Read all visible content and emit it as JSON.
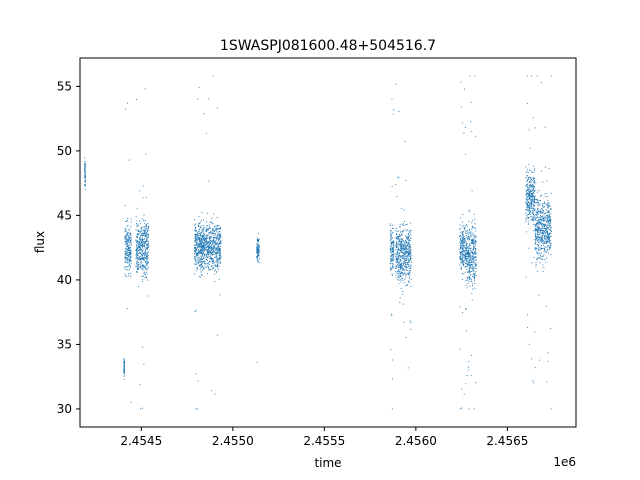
{
  "chart_data": {
    "type": "scatter",
    "title": "1SWASPJ081600.48+504516.7",
    "xlabel": "time",
    "ylabel": "flux",
    "x_offset_label": "1e6",
    "xlim": [
      2454165,
      2456875
    ],
    "ylim": [
      28.6,
      57.2
    ],
    "xticks": [
      2454500,
      2455000,
      2455500,
      2456000,
      2456500
    ],
    "xtick_labels": [
      "2.4545",
      "2.4550",
      "2.4555",
      "2.4560",
      "2.4565"
    ],
    "yticks": [
      30,
      35,
      40,
      45,
      50,
      55
    ],
    "ytick_labels": [
      "30",
      "35",
      "40",
      "45",
      "50",
      "55"
    ],
    "grid": false,
    "marker_color": "#1f77b4",
    "segments": [
      {
        "x_start": 2454190,
        "x_end": 2454195,
        "y_center": 48.2,
        "spread": 0.9,
        "outliers": 0
      },
      {
        "x_start": 2454410,
        "x_end": 2454445,
        "y_center": 42.5,
        "spread": 1.6,
        "outliers": 6
      },
      {
        "x_start": 2454405,
        "x_end": 2454408,
        "y_center": 33.2,
        "spread": 0.6,
        "outliers": 0
      },
      {
        "x_start": 2454470,
        "x_end": 2454540,
        "y_center": 42.4,
        "spread": 1.8,
        "outliers": 14
      },
      {
        "x_start": 2454790,
        "x_end": 2454935,
        "y_center": 42.6,
        "spread": 1.5,
        "outliers": 20
      },
      {
        "x_start": 2455130,
        "x_end": 2455145,
        "y_center": 42.4,
        "spread": 0.7,
        "outliers": 1
      },
      {
        "x_start": 2455860,
        "x_end": 2455880,
        "y_center": 42.3,
        "spread": 1.6,
        "outliers": 10
      },
      {
        "x_start": 2455890,
        "x_end": 2455975,
        "y_center": 42.0,
        "spread": 1.8,
        "outliers": 20
      },
      {
        "x_start": 2456240,
        "x_end": 2456270,
        "y_center": 42.4,
        "spread": 1.5,
        "outliers": 14
      },
      {
        "x_start": 2456270,
        "x_end": 2456330,
        "y_center": 42.0,
        "spread": 1.9,
        "outliers": 24
      },
      {
        "x_start": 2456600,
        "x_end": 2456650,
        "y_center": 46.5,
        "spread": 1.8,
        "outliers": 16
      },
      {
        "x_start": 2456650,
        "x_end": 2456740,
        "y_center": 44.0,
        "spread": 2.0,
        "outliers": 20
      }
    ]
  }
}
